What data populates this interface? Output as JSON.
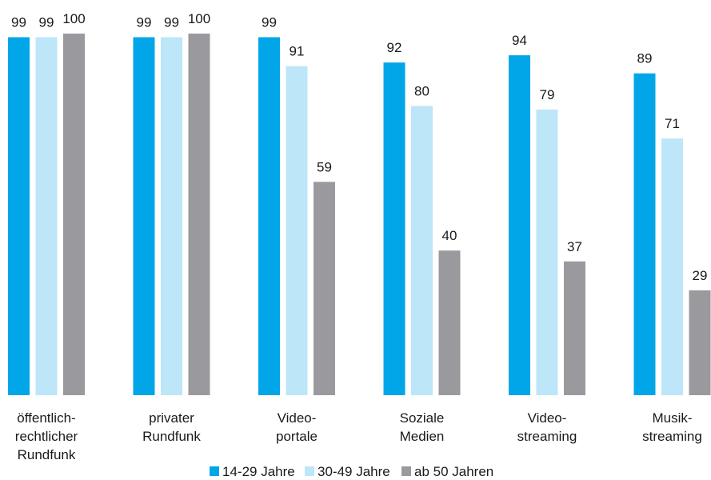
{
  "chart_data": {
    "type": "bar",
    "categories": [
      [
        "öffentlich-",
        "rechtlicher",
        "Rundfunk"
      ],
      [
        "privater",
        "Rundfunk"
      ],
      [
        "Video-",
        "portale"
      ],
      [
        "Soziale",
        "Medien"
      ],
      [
        "Video-",
        "streaming"
      ],
      [
        "Musik-",
        "streaming"
      ]
    ],
    "series": [
      {
        "name": "14-29 Jahre",
        "color": "#00a6e8",
        "values": [
          99,
          99,
          99,
          92,
          94,
          89
        ]
      },
      {
        "name": "30-49 Jahre",
        "color": "#bde6f9",
        "values": [
          99,
          99,
          91,
          80,
          79,
          71
        ]
      },
      {
        "name": "ab 50 Jahren",
        "color": "#9a9a9e",
        "values": [
          100,
          100,
          59,
          40,
          37,
          29
        ]
      }
    ],
    "title": "",
    "xlabel": "",
    "ylabel": "",
    "ylim": [
      0,
      100
    ],
    "grid": false,
    "legend_position": "bottom-center"
  }
}
